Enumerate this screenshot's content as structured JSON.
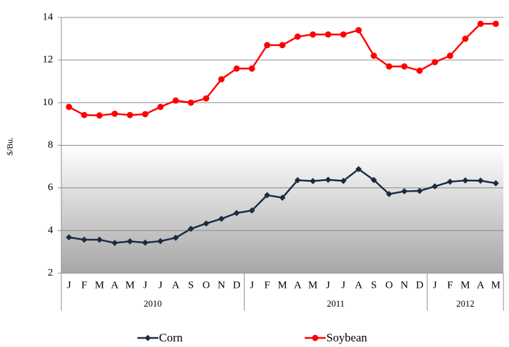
{
  "chart_data": {
    "type": "line",
    "y_label": "$/Bu.",
    "categories": [
      "J",
      "F",
      "M",
      "A",
      "M",
      "J",
      "J",
      "A",
      "S",
      "O",
      "N",
      "D",
      "J",
      "F",
      "M",
      "A",
      "M",
      "J",
      "J",
      "A",
      "S",
      "O",
      "N",
      "D",
      "J",
      "F",
      "M",
      "A",
      "M"
    ],
    "category_groups": [
      "2010",
      null,
      null,
      null,
      null,
      null,
      null,
      null,
      null,
      null,
      null,
      null,
      "2011",
      null,
      null,
      null,
      null,
      null,
      null,
      null,
      null,
      null,
      null,
      null,
      "2012",
      null,
      null,
      null,
      null
    ],
    "series": [
      {
        "name": "Corn",
        "color": "#1b2a45",
        "marker": "diamond",
        "values": [
          3.68,
          3.57,
          3.57,
          3.42,
          3.49,
          3.43,
          3.5,
          3.66,
          4.08,
          4.33,
          4.55,
          4.82,
          4.94,
          5.66,
          5.54,
          6.36,
          6.32,
          6.38,
          6.33,
          6.88,
          6.37,
          5.71,
          5.84,
          5.86,
          6.07,
          6.29,
          6.35,
          6.34,
          6.22
        ]
      },
      {
        "name": "Soybean",
        "color": "#ff0000",
        "marker": "circle",
        "values": [
          9.8,
          9.42,
          9.4,
          9.48,
          9.42,
          9.46,
          9.8,
          10.1,
          10.0,
          10.2,
          11.1,
          11.6,
          11.6,
          12.7,
          12.7,
          13.1,
          13.2,
          13.2,
          13.2,
          13.4,
          12.2,
          11.7,
          11.7,
          11.5,
          11.9,
          12.2,
          13.0,
          13.7,
          13.7
        ]
      }
    ],
    "ylim": [
      2,
      14
    ],
    "yticks": [
      2,
      4,
      6,
      8,
      10,
      12,
      14
    ],
    "grid": true
  }
}
